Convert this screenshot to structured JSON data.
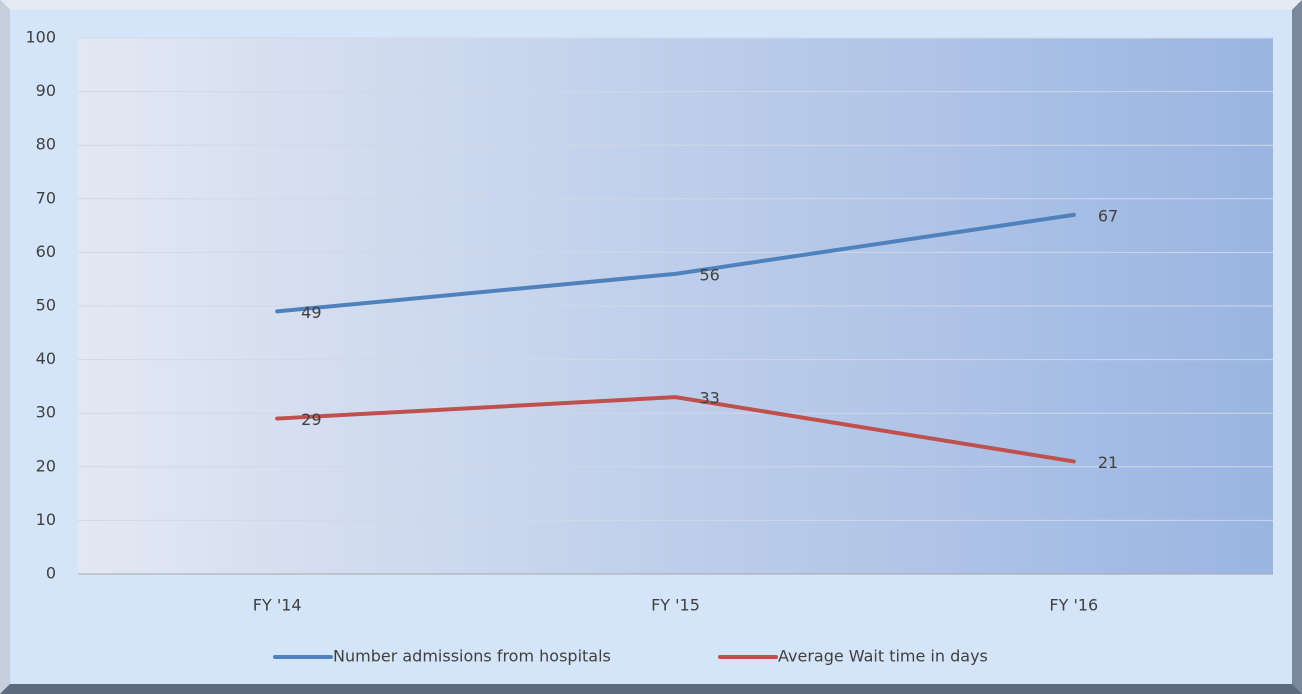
{
  "chart_data": {
    "type": "line",
    "categories": [
      "FY '14",
      "FY '15",
      "FY '16"
    ],
    "series": [
      {
        "name": "Number admissions from hospitals",
        "color": "#4f81bd",
        "values": [
          49,
          56,
          67
        ]
      },
      {
        "name": "Average Wait time in days",
        "color": "#c0504d",
        "values": [
          29,
          33,
          21
        ]
      }
    ],
    "ylim": [
      0,
      100
    ],
    "yticks": [
      0,
      10,
      20,
      30,
      40,
      50,
      60,
      70,
      80,
      90,
      100
    ],
    "grid": true,
    "legend": "bottom"
  }
}
